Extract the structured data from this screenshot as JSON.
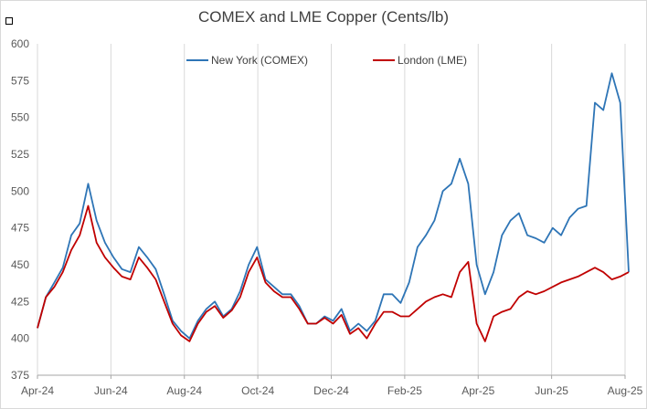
{
  "chart_data": {
    "type": "line",
    "title": "COMEX and LME Copper (Cents/lb)",
    "xlabel": "",
    "ylabel": "",
    "ylim": [
      375,
      600
    ],
    "yticks": [
      375,
      400,
      425,
      450,
      475,
      500,
      525,
      550,
      575,
      600
    ],
    "xticks": [
      "Apr-24",
      "Jun-24",
      "Aug-24",
      "Oct-24",
      "Dec-24",
      "Feb-25",
      "Apr-25",
      "Jun-25",
      "Aug-25"
    ],
    "grid": "vertical",
    "legend_position": "top-center",
    "colors": {
      "comex": "#2e75b6",
      "lme": "#c00000"
    },
    "x": [
      "2024-04-01",
      "2024-04-08",
      "2024-04-15",
      "2024-04-22",
      "2024-04-29",
      "2024-05-06",
      "2024-05-13",
      "2024-05-20",
      "2024-05-27",
      "2024-06-03",
      "2024-06-10",
      "2024-06-17",
      "2024-06-24",
      "2024-07-01",
      "2024-07-08",
      "2024-07-15",
      "2024-07-22",
      "2024-07-29",
      "2024-08-05",
      "2024-08-12",
      "2024-08-19",
      "2024-08-26",
      "2024-09-02",
      "2024-09-09",
      "2024-09-16",
      "2024-09-23",
      "2024-09-30",
      "2024-10-07",
      "2024-10-14",
      "2024-10-21",
      "2024-10-28",
      "2024-11-04",
      "2024-11-11",
      "2024-11-18",
      "2024-11-25",
      "2024-12-02",
      "2024-12-09",
      "2024-12-16",
      "2024-12-23",
      "2024-12-30",
      "2025-01-06",
      "2025-01-13",
      "2025-01-20",
      "2025-01-27",
      "2025-02-03",
      "2025-02-10",
      "2025-02-17",
      "2025-02-24",
      "2025-03-03",
      "2025-03-10",
      "2025-03-17",
      "2025-03-24",
      "2025-03-31",
      "2025-04-07",
      "2025-04-14",
      "2025-04-21",
      "2025-04-28",
      "2025-05-05",
      "2025-05-12",
      "2025-05-19",
      "2025-05-26",
      "2025-06-02",
      "2025-06-09",
      "2025-06-16",
      "2025-06-23",
      "2025-06-30",
      "2025-07-07",
      "2025-07-14",
      "2025-07-21",
      "2025-07-28",
      "2025-08-04"
    ],
    "series": [
      {
        "name": "New York (COMEX)",
        "values": [
          407,
          428,
          438,
          448,
          470,
          478,
          505,
          480,
          465,
          455,
          447,
          445,
          462,
          455,
          447,
          430,
          412,
          405,
          400,
          412,
          420,
          425,
          415,
          420,
          432,
          450,
          462,
          440,
          435,
          430,
          430,
          422,
          410,
          410,
          415,
          412,
          420,
          405,
          410,
          405,
          412,
          430,
          430,
          424,
          438,
          462,
          470,
          480,
          500,
          505,
          522,
          505,
          450,
          430,
          445,
          470,
          480,
          485,
          470,
          468,
          465,
          475,
          470,
          482,
          488,
          490,
          560,
          555,
          580,
          560,
          445
        ]
      },
      {
        "name": "London (LME)",
        "values": [
          407,
          428,
          435,
          445,
          460,
          470,
          490,
          465,
          455,
          448,
          442,
          440,
          455,
          448,
          440,
          425,
          410,
          402,
          398,
          410,
          418,
          422,
          414,
          419,
          428,
          445,
          455,
          438,
          432,
          428,
          428,
          420,
          410,
          410,
          414,
          410,
          416,
          403,
          407,
          400,
          410,
          418,
          418,
          415,
          415,
          420,
          425,
          428,
          430,
          428,
          445,
          452,
          410,
          398,
          415,
          418,
          420,
          428,
          432,
          430,
          432,
          435,
          438,
          440,
          442,
          445,
          448,
          445,
          440,
          442,
          445
        ]
      }
    ]
  }
}
